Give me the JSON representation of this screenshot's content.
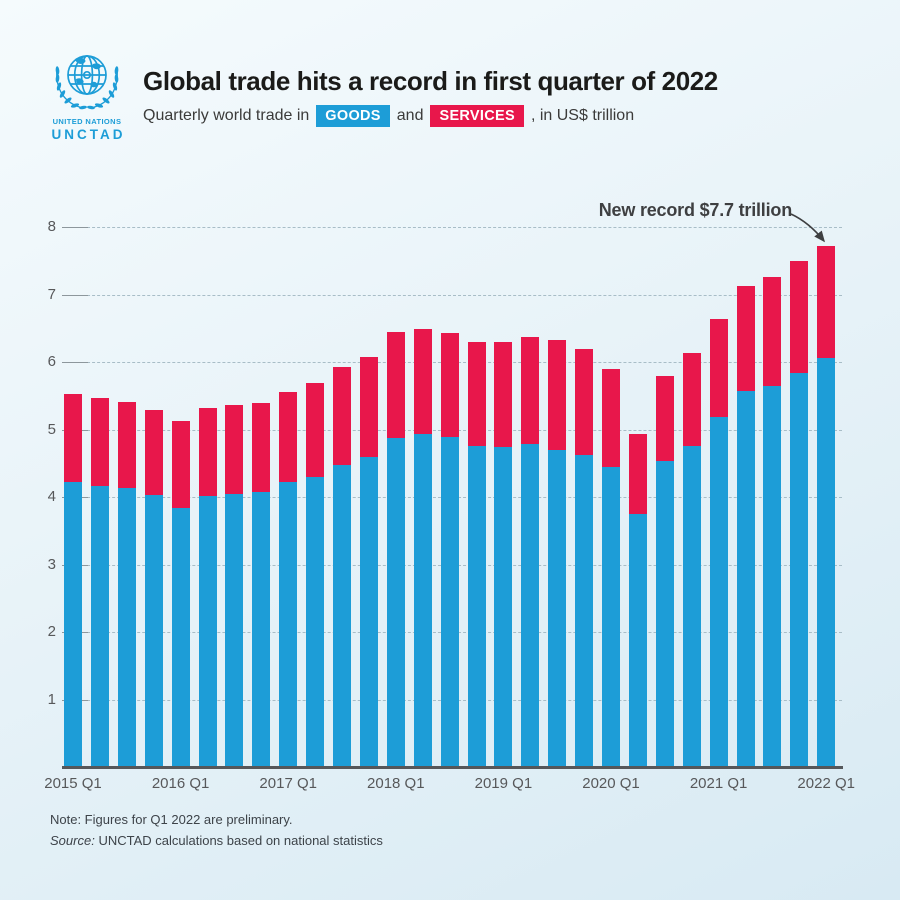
{
  "header": {
    "logo": {
      "org_small": "UNITED NATIONS",
      "org": "UNCTAD"
    },
    "title": "Global trade hits a record in first quarter of 2022",
    "subtitle": {
      "prefix": "Quarterly world trade in",
      "goods_badge": "GOODS",
      "conjunction": "and",
      "services_badge": "SERVICES",
      "suffix": ", in US$ trillion"
    }
  },
  "annotation": {
    "text": "New record $7.7 trillion"
  },
  "footer": {
    "note": "Note: Figures for Q1 2022 are preliminary.",
    "source_label": "Source:",
    "source_text": "UNCTAD calculations based on national statistics"
  },
  "colors": {
    "goods_blue": "#1d9dd7",
    "services_red": "#e8174b",
    "background_light": "#f5fbfd",
    "background_dark": "#d8eaf3",
    "axis_gray": "#55575a",
    "tick_gray": "#57585a",
    "title_dark": "#1b1b19"
  },
  "chart_data": {
    "type": "bar",
    "stacked": true,
    "title": "Quarterly world trade in goods and services, in US$ trillion",
    "x": [
      "2015 Q1",
      "2015 Q2",
      "2015 Q3",
      "2015 Q4",
      "2016 Q1",
      "2016 Q2",
      "2016 Q3",
      "2016 Q4",
      "2017 Q1",
      "2017 Q2",
      "2017 Q3",
      "2017 Q4",
      "2018 Q1",
      "2018 Q2",
      "2018 Q3",
      "2018 Q4",
      "2019 Q1",
      "2019 Q2",
      "2019 Q3",
      "2019 Q4",
      "2020 Q1",
      "2020 Q2",
      "2020 Q3",
      "2020 Q4",
      "2021 Q1",
      "2021 Q2",
      "2021 Q3",
      "2021 Q4",
      "2022 Q1"
    ],
    "x_tick_labels": [
      "2015 Q1",
      "2016 Q1",
      "2017 Q1",
      "2018 Q1",
      "2019 Q1",
      "2020 Q1",
      "2021 Q1",
      "2022 Q1"
    ],
    "series": [
      {
        "name": "Goods",
        "color": "#1d9dd7",
        "values": [
          4.22,
          4.17,
          4.14,
          4.03,
          3.84,
          4.02,
          4.04,
          4.07,
          4.23,
          4.3,
          4.48,
          4.6,
          4.88,
          4.93,
          4.89,
          4.75,
          4.74,
          4.78,
          4.7,
          4.62,
          4.44,
          3.75,
          4.53,
          4.75,
          5.18,
          5.57,
          5.65,
          5.83,
          6.06
        ]
      },
      {
        "name": "Services",
        "color": "#e8174b",
        "values": [
          1.3,
          1.3,
          1.27,
          1.26,
          1.28,
          1.3,
          1.32,
          1.32,
          1.32,
          1.39,
          1.45,
          1.48,
          1.56,
          1.56,
          1.54,
          1.54,
          1.56,
          1.59,
          1.63,
          1.58,
          1.46,
          1.19,
          1.27,
          1.38,
          1.46,
          1.55,
          1.61,
          1.66,
          1.66
        ]
      }
    ],
    "totals": [
      5.52,
      5.47,
      5.41,
      5.29,
      5.12,
      5.32,
      5.36,
      5.39,
      5.55,
      5.69,
      5.93,
      6.08,
      6.44,
      6.49,
      6.43,
      6.29,
      6.3,
      6.37,
      6.33,
      6.2,
      5.9,
      4.94,
      5.8,
      6.13,
      6.64,
      7.12,
      7.26,
      7.49,
      7.72
    ],
    "ylim": [
      0,
      8
    ],
    "yticks": [
      1,
      2,
      3,
      4,
      5,
      6,
      7,
      8
    ],
    "grid": true,
    "legend_position": "in-subtitle-badges",
    "annotation": {
      "text": "New record $7.7 trillion",
      "target_x": "2022 Q1",
      "target_value": 7.72
    }
  }
}
